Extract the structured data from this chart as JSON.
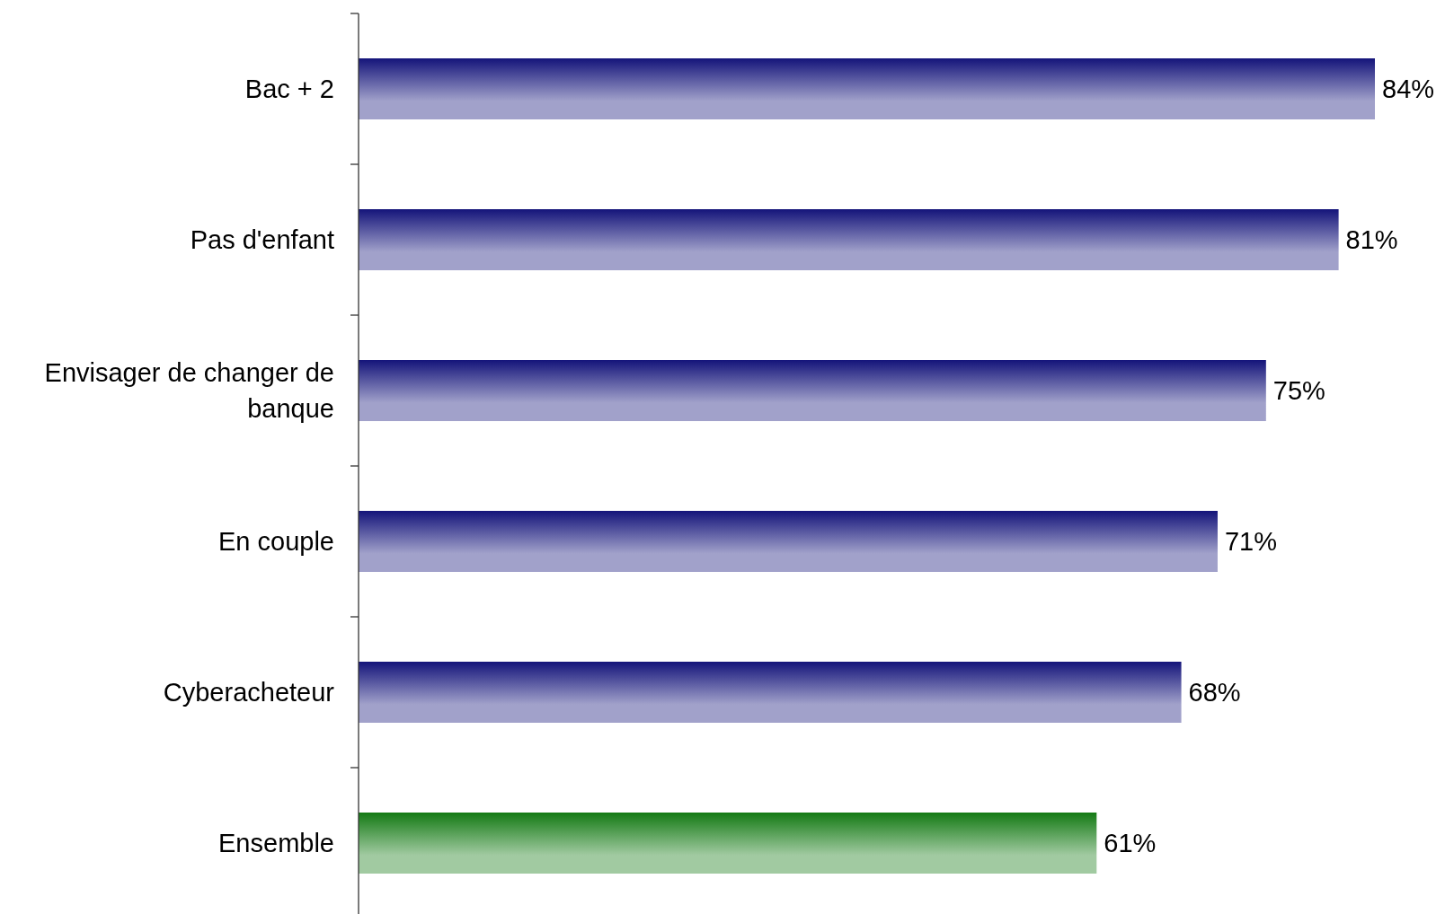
{
  "chart_data": {
    "type": "bar",
    "orientation": "horizontal",
    "categories": [
      "Bac + 2",
      "Pas d'enfant",
      "Envisager de changer de banque",
      "En couple",
      "Cyberacheteur",
      "Ensemble"
    ],
    "values": [
      84,
      81,
      75,
      71,
      68,
      61
    ],
    "colors": [
      "#14147a",
      "#14147a",
      "#14147a",
      "#14147a",
      "#14147a",
      "#147a14"
    ],
    "value_labels": [
      "84%",
      "81%",
      "75%",
      "71%",
      "68%",
      "61%"
    ]
  }
}
